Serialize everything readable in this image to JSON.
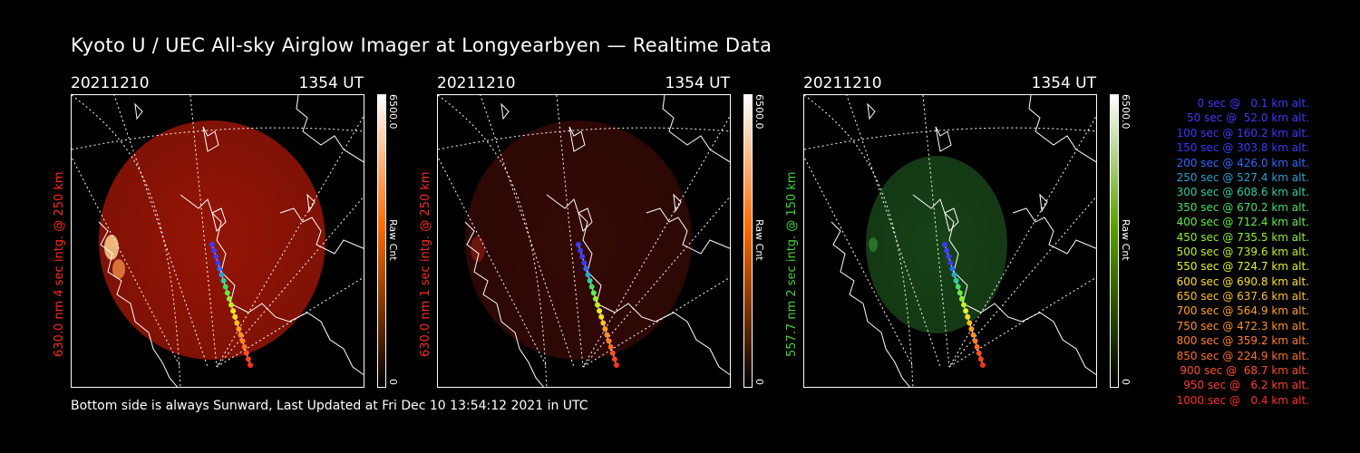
{
  "title": "Kyoto U / UEC All-sky Airglow Imager at Longyearbyen — Realtime Data",
  "footer": "Bottom side is always Sunward, Last Updated at Fri Dec 10 13:54:12 2021 in UTC",
  "panels": [
    {
      "date": "20211210",
      "time": "1354 UT",
      "ylabel": "630.0 nm 4 sec intg. @ 250 km",
      "label_color": "#ff2a1a",
      "cb_max": "6500.0",
      "cb_min": "0",
      "cb_unit": "Raw Cnt",
      "cb_color": "#ff6a00",
      "disc_color": "#b01808",
      "disc_opacity": 0.85,
      "brightness": "high"
    },
    {
      "date": "20211210",
      "time": "1354 UT",
      "ylabel": "630.0 nm 1 sec intg. @ 250 km",
      "label_color": "#ff2a1a",
      "cb_max": "6500.0",
      "cb_min": "0",
      "cb_unit": "Raw Cnt",
      "cb_color": "#ff6a00",
      "disc_color": "#3a0a06",
      "disc_opacity": 0.9,
      "brightness": "low"
    },
    {
      "date": "20211210",
      "time": "1354 UT",
      "ylabel": "557.7 nm 2 sec intg. @ 150 km",
      "label_color": "#3fd23f",
      "cb_max": "6500.0",
      "cb_min": "0",
      "cb_unit": "Raw Cnt",
      "cb_color": "#5aa000",
      "disc_color": "#1a4a1a",
      "disc_opacity": 0.9,
      "brightness": "mid"
    }
  ],
  "legend": [
    {
      "text": "   0 sec @   0.1 km alt.",
      "color": "#3a3aff"
    },
    {
      "text": "  50 sec @  52.0 km alt.",
      "color": "#3a3aff"
    },
    {
      "text": " 100 sec @ 160.2 km alt.",
      "color": "#3a3aff"
    },
    {
      "text": " 150 sec @ 303.8 km alt.",
      "color": "#3a3aff"
    },
    {
      "text": " 200 sec @ 426.0 km alt.",
      "color": "#2a6aff"
    },
    {
      "text": " 250 sec @ 527.4 km alt.",
      "color": "#2aa0d0"
    },
    {
      "text": " 300 sec @ 608.6 km alt.",
      "color": "#2ad0a0"
    },
    {
      "text": " 350 sec @ 670.2 km alt.",
      "color": "#3fe060"
    },
    {
      "text": " 400 sec @ 712.4 km alt.",
      "color": "#5ff040"
    },
    {
      "text": " 450 sec @ 735.5 km alt.",
      "color": "#8ff030"
    },
    {
      "text": " 500 sec @ 739.6 km alt.",
      "color": "#c0f020"
    },
    {
      "text": " 550 sec @ 724.7 km alt.",
      "color": "#e8f020"
    },
    {
      "text": " 600 sec @ 690.8 km alt.",
      "color": "#ffe020"
    },
    {
      "text": " 650 sec @ 637.6 km alt.",
      "color": "#ffc020"
    },
    {
      "text": " 700 sec @ 564.9 km alt.",
      "color": "#ffa020"
    },
    {
      "text": " 750 sec @ 472.3 km alt.",
      "color": "#ff9020"
    },
    {
      "text": " 800 sec @ 359.2 km alt.",
      "color": "#ff8020"
    },
    {
      "text": " 850 sec @ 224.9 km alt.",
      "color": "#ff7020"
    },
    {
      "text": " 900 sec @  68.7 km alt.",
      "color": "#ff5020"
    },
    {
      "text": " 950 sec @   6.2 km alt.",
      "color": "#ff4020"
    },
    {
      "text": "1000 sec @   0.4 km alt.",
      "color": "#ff3020"
    }
  ]
}
